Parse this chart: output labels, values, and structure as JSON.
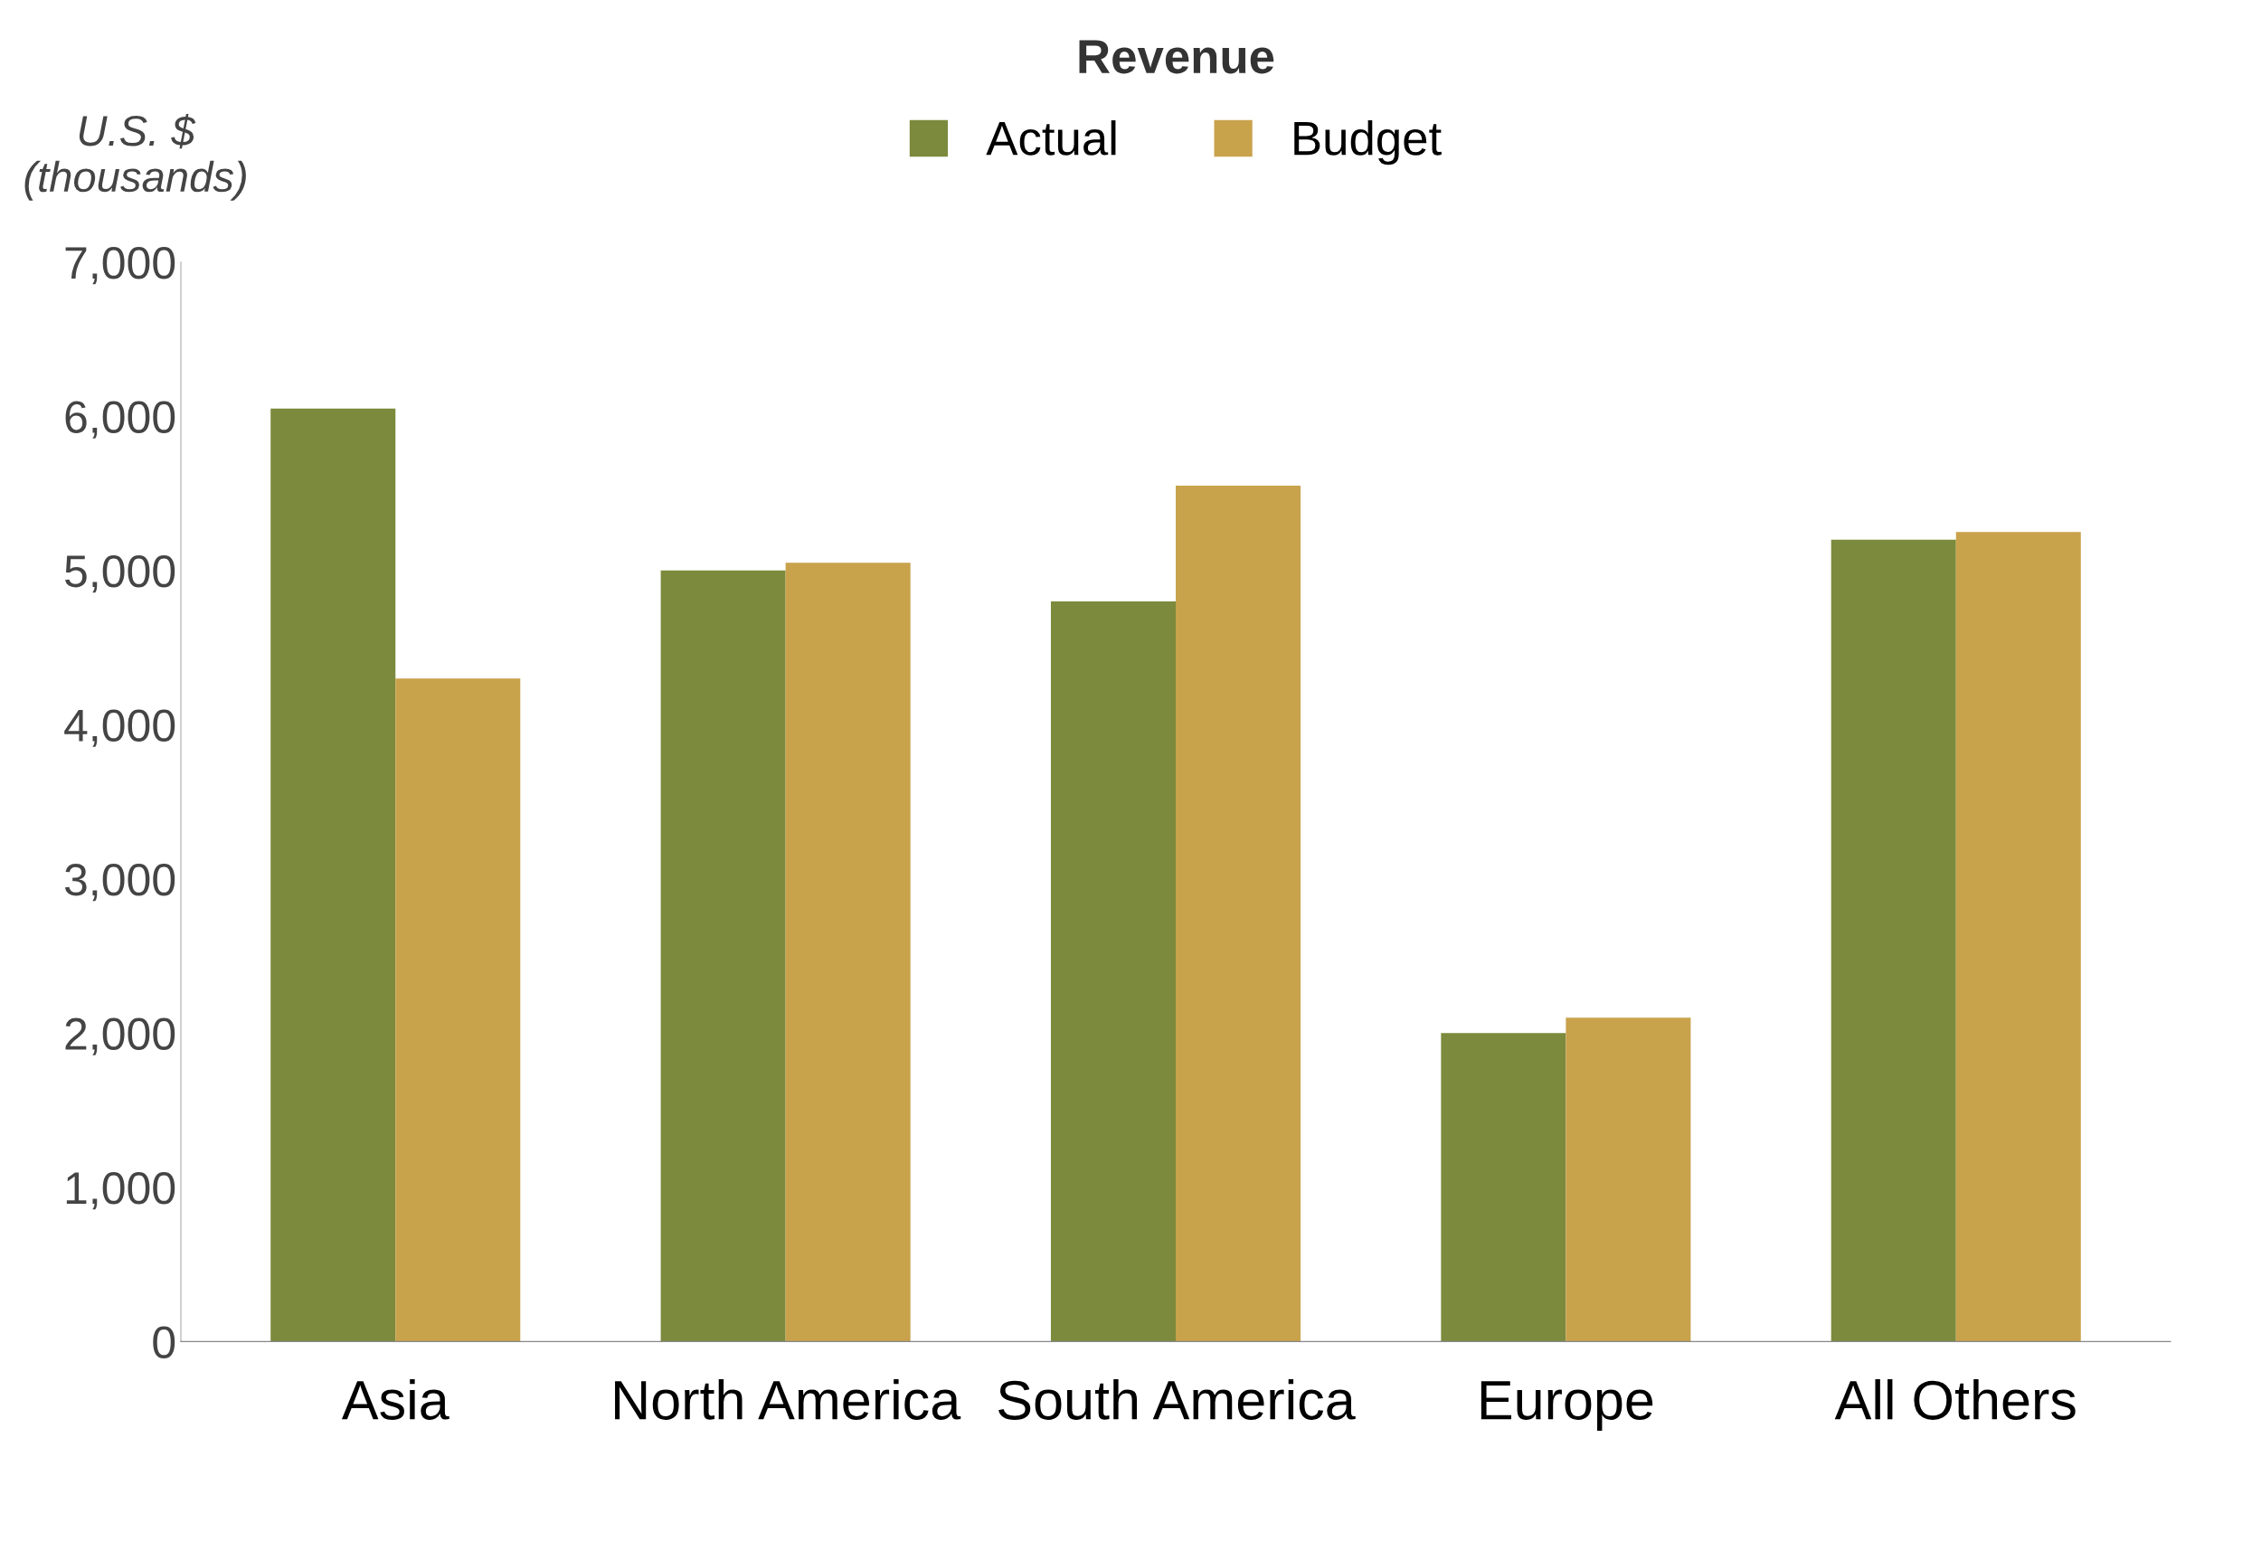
{
  "chart_data": {
    "type": "bar",
    "title": "Revenue",
    "ylabel": "U.S. $\n(thousands)",
    "categories": [
      "Asia",
      "North America",
      "South America",
      "Europe",
      "All Others"
    ],
    "series": [
      {
        "name": "Actual",
        "color": "#7b8a3c",
        "values": [
          6050,
          5000,
          4800,
          2000,
          5200
        ]
      },
      {
        "name": "Budget",
        "color": "#c9a24c",
        "values": [
          4300,
          5050,
          5550,
          2100,
          5250
        ]
      }
    ],
    "ylim": [
      0,
      7000
    ],
    "yticks": [
      {
        "value": 0,
        "label": "0"
      },
      {
        "value": 1000,
        "label": "1,000"
      },
      {
        "value": 2000,
        "label": "2,000"
      },
      {
        "value": 3000,
        "label": "3,000"
      },
      {
        "value": 4000,
        "label": "4,000"
      },
      {
        "value": 5000,
        "label": "5,000"
      },
      {
        "value": 6000,
        "label": "6,000"
      },
      {
        "value": 7000,
        "label": "7,000"
      }
    ],
    "grid": false,
    "legend": "top"
  }
}
